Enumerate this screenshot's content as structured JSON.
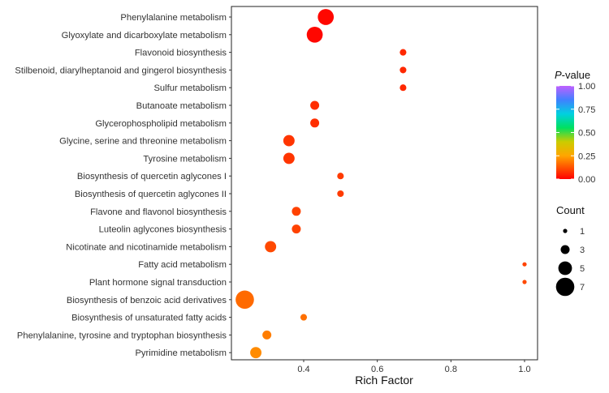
{
  "chart_data": {
    "type": "scatter",
    "title": "",
    "xlabel": "Rich Factor",
    "ylabel": "",
    "xlim": [
      0.22,
      1.02
    ],
    "x_ticks": [
      0.4,
      0.6,
      0.8,
      1.0
    ],
    "x_tick_labels": [
      "0.4",
      "0.6",
      "0.8",
      "1.0"
    ],
    "grid": false,
    "categories": [
      "Phenylalanine metabolism",
      "Glyoxylate and dicarboxylate metabolism",
      "Flavonoid biosynthesis",
      "Stilbenoid, diarylheptanoid and gingerol biosynthesis",
      "Sulfur metabolism",
      "Butanoate metabolism",
      "Glycerophospholipid metabolism",
      "Glycine, serine and threonine metabolism",
      "Tyrosine metabolism",
      "Biosynthesis of quercetin aglycones I",
      "Biosynthesis of quercetin aglycones II",
      "Flavone and flavonol biosynthesis",
      "Luteolin aglycones biosynthesis",
      "Nicotinate and nicotinamide metabolism",
      "Fatty acid metabolism",
      "Plant hormone signal transduction",
      "Biosynthesis of benzoic acid derivatives",
      "Biosynthesis of unsaturated fatty acids",
      "Phenylalanine, tyrosine and tryptophan biosynthesis",
      "Pyrimidine metabolism"
    ],
    "points": [
      {
        "rich_factor": 0.46,
        "count": 6,
        "p_value": 0.01
      },
      {
        "rich_factor": 0.43,
        "count": 6,
        "p_value": 0.01
      },
      {
        "rich_factor": 0.67,
        "count": 2,
        "p_value": 0.06
      },
      {
        "rich_factor": 0.67,
        "count": 2,
        "p_value": 0.06
      },
      {
        "rich_factor": 0.67,
        "count": 2,
        "p_value": 0.06
      },
      {
        "rich_factor": 0.43,
        "count": 3,
        "p_value": 0.07
      },
      {
        "rich_factor": 0.43,
        "count": 3,
        "p_value": 0.07
      },
      {
        "rich_factor": 0.36,
        "count": 4,
        "p_value": 0.08
      },
      {
        "rich_factor": 0.36,
        "count": 4,
        "p_value": 0.08
      },
      {
        "rich_factor": 0.5,
        "count": 2,
        "p_value": 0.09
      },
      {
        "rich_factor": 0.5,
        "count": 2,
        "p_value": 0.09
      },
      {
        "rich_factor": 0.38,
        "count": 3,
        "p_value": 0.1
      },
      {
        "rich_factor": 0.38,
        "count": 3,
        "p_value": 0.1
      },
      {
        "rich_factor": 0.31,
        "count": 4,
        "p_value": 0.11
      },
      {
        "rich_factor": 1.0,
        "count": 1,
        "p_value": 0.1
      },
      {
        "rich_factor": 1.0,
        "count": 1,
        "p_value": 0.11
      },
      {
        "rich_factor": 0.24,
        "count": 7,
        "p_value": 0.16
      },
      {
        "rich_factor": 0.4,
        "count": 2,
        "p_value": 0.17
      },
      {
        "rich_factor": 0.3,
        "count": 3,
        "p_value": 0.19
      },
      {
        "rich_factor": 0.27,
        "count": 4,
        "p_value": 0.21
      }
    ],
    "color_legend": {
      "title_italic": "P",
      "title_rest": "-value",
      "ticks": [
        1.0,
        0.75,
        0.5,
        0.25,
        0.0
      ],
      "tick_labels": [
        "1.00",
        "0.75",
        "0.50",
        "0.25",
        "0.00"
      ],
      "gradient_stops": [
        {
          "value": 0.0,
          "color": "#ff0000"
        },
        {
          "value": 0.25,
          "color": "#ffa500"
        },
        {
          "value": 0.4,
          "color": "#cccc00"
        },
        {
          "value": 0.55,
          "color": "#00e060"
        },
        {
          "value": 0.7,
          "color": "#00d0e0"
        },
        {
          "value": 0.85,
          "color": "#4080ff"
        },
        {
          "value": 1.0,
          "color": "#c060ff"
        }
      ]
    },
    "size_legend": {
      "title": "Count",
      "values": [
        1,
        3,
        5,
        7
      ],
      "labels": [
        "1",
        "3",
        "5",
        "7"
      ]
    },
    "legend_position": "right"
  }
}
